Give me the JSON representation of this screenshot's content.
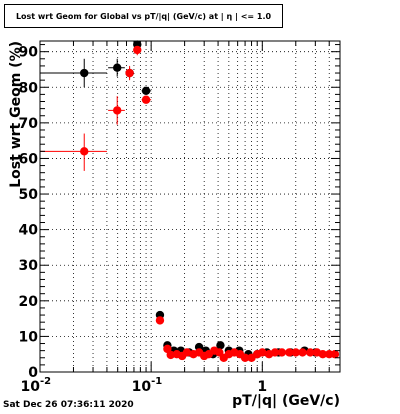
{
  "title": "Lost wrt Geom for Global vs pT/|q| (GeV/c) at | η | <= 1.0",
  "footer": "Sat Dec 26 07:36:11 2020",
  "chart_data": {
    "type": "scatter",
    "title": "Lost wrt Geom for Global vs pT/|q| (GeV/c) at | η | <= 1.0",
    "xlabel": "pT/|q| (GeV/c)",
    "ylabel": "Lost wrt Geom (%)",
    "xscale": "log",
    "xlim": [
      0.01,
      5
    ],
    "ylim": [
      0,
      93
    ],
    "grid": true,
    "x_ticks": [
      {
        "v": 0.01,
        "label": "10",
        "sup": "-2"
      },
      {
        "v": 0.1,
        "label": "10",
        "sup": "-1"
      },
      {
        "v": 1,
        "label": "1",
        "sup": ""
      }
    ],
    "y_ticks": [
      {
        "v": 0,
        "label": "0"
      },
      {
        "v": 10,
        "label": "10"
      },
      {
        "v": 20,
        "label": "20"
      },
      {
        "v": 30,
        "label": "30"
      },
      {
        "v": 40,
        "label": "40"
      },
      {
        "v": 50,
        "label": "50"
      },
      {
        "v": 60,
        "label": "60"
      },
      {
        "v": 70,
        "label": "70"
      },
      {
        "v": 80,
        "label": "80"
      },
      {
        "v": 90,
        "label": "90"
      }
    ],
    "series": [
      {
        "color": "#000000",
        "points": [
          {
            "x": 0.025,
            "y": 84,
            "xlo": 0.01,
            "xhi": 0.04,
            "ylo": 80,
            "yhi": 88
          },
          {
            "x": 0.0495,
            "y": 85.5,
            "xlo": 0.041,
            "xhi": 0.058,
            "ylo": 83,
            "yhi": 88
          },
          {
            "x": 0.064,
            "y": 84,
            "xlo": 0.059,
            "xhi": 0.069,
            "ylo": 82.5,
            "yhi": 85.5
          },
          {
            "x": 0.075,
            "y": 92,
            "xlo": 0.07,
            "xhi": 0.08,
            "ylo": 91,
            "yhi": 93
          },
          {
            "x": 0.09,
            "y": 79,
            "xlo": 0.082,
            "xhi": 0.1,
            "ylo": 78,
            "yhi": 80
          },
          {
            "x": 0.12,
            "y": 16,
            "xlo": 0.115,
            "xhi": 0.125,
            "ylo": 15,
            "yhi": 17
          },
          {
            "x": 0.14,
            "y": 7.5,
            "xlo": 0.135,
            "xhi": 0.145,
            "ylo": 6.5,
            "yhi": 8.5
          },
          {
            "x": 0.16,
            "y": 6,
            "xlo": 0.155,
            "xhi": 0.165,
            "ylo": 5.3,
            "yhi": 6.7
          },
          {
            "x": 0.185,
            "y": 6,
            "xlo": 0.18,
            "xhi": 0.19,
            "ylo": 5.3,
            "yhi": 6.7
          },
          {
            "x": 0.22,
            "y": 5.5,
            "xlo": 0.21,
            "xhi": 0.23,
            "ylo": 4.8,
            "yhi": 6.2
          },
          {
            "x": 0.27,
            "y": 7,
            "xlo": 0.26,
            "xhi": 0.28,
            "ylo": 6.3,
            "yhi": 7.7
          },
          {
            "x": 0.31,
            "y": 6,
            "xlo": 0.3,
            "xhi": 0.32,
            "ylo": 5.3,
            "yhi": 6.7
          },
          {
            "x": 0.36,
            "y": 5,
            "xlo": 0.35,
            "xhi": 0.37,
            "ylo": 4.3,
            "yhi": 5.7
          },
          {
            "x": 0.42,
            "y": 7.5,
            "xlo": 0.41,
            "xhi": 0.43,
            "ylo": 6.8,
            "yhi": 8.2
          },
          {
            "x": 0.5,
            "y": 6,
            "xlo": 0.49,
            "xhi": 0.51,
            "ylo": 5.4,
            "yhi": 6.6
          },
          {
            "x": 0.62,
            "y": 6,
            "xlo": 0.6,
            "xhi": 0.64,
            "ylo": 5.4,
            "yhi": 6.6
          },
          {
            "x": 0.75,
            "y": 5,
            "xlo": 0.72,
            "xhi": 0.78,
            "ylo": 4.4,
            "yhi": 5.6
          },
          {
            "x": 0.9,
            "y": 5,
            "xlo": 0.87,
            "xhi": 0.93,
            "ylo": 4.5,
            "yhi": 5.5
          },
          {
            "x": 1.1,
            "y": 5.5,
            "xlo": 1.05,
            "xhi": 1.15,
            "ylo": 5.0,
            "yhi": 6.0
          },
          {
            "x": 1.4,
            "y": 5.5,
            "xlo": 1.3,
            "xhi": 1.5,
            "ylo": 5.0,
            "yhi": 6.0
          },
          {
            "x": 1.8,
            "y": 5.5,
            "xlo": 1.7,
            "xhi": 1.9,
            "ylo": 5.0,
            "yhi": 6.0
          },
          {
            "x": 2.4,
            "y": 6,
            "xlo": 2.2,
            "xhi": 2.6,
            "ylo": 5.5,
            "yhi": 6.5
          },
          {
            "x": 3.0,
            "y": 5.5,
            "xlo": 2.8,
            "xhi": 3.2,
            "ylo": 5.0,
            "yhi": 6.0
          }
        ]
      },
      {
        "color": "#ff0000",
        "points": [
          {
            "x": 0.025,
            "y": 62,
            "xlo": 0.01,
            "xhi": 0.04,
            "ylo": 56.5,
            "yhi": 67
          },
          {
            "x": 0.0495,
            "y": 73.5,
            "xlo": 0.041,
            "xhi": 0.058,
            "ylo": 69.5,
            "yhi": 77.5
          },
          {
            "x": 0.064,
            "y": 84,
            "xlo": 0.059,
            "xhi": 0.069,
            "ylo": 82,
            "yhi": 86
          },
          {
            "x": 0.075,
            "y": 90.5,
            "xlo": 0.07,
            "xhi": 0.08,
            "ylo": 89,
            "yhi": 92
          },
          {
            "x": 0.09,
            "y": 76.5,
            "xlo": 0.082,
            "xhi": 0.1,
            "ylo": 75.5,
            "yhi": 77.5
          },
          {
            "x": 0.12,
            "y": 14.5,
            "xlo": 0.115,
            "xhi": 0.125,
            "ylo": 13.5,
            "yhi": 15.5
          },
          {
            "x": 0.14,
            "y": 6.5,
            "xlo": 0.135,
            "xhi": 0.145,
            "ylo": 5.8,
            "yhi": 7.2
          },
          {
            "x": 0.15,
            "y": 4.8,
            "xlo": 0.145,
            "xhi": 0.155,
            "ylo": 4.2,
            "yhi": 5.4
          },
          {
            "x": 0.17,
            "y": 5,
            "xlo": 0.165,
            "xhi": 0.175,
            "ylo": 4.4,
            "yhi": 5.6
          },
          {
            "x": 0.19,
            "y": 4.5,
            "xlo": 0.185,
            "xhi": 0.195,
            "ylo": 3.9,
            "yhi": 5.1
          },
          {
            "x": 0.21,
            "y": 5.5,
            "xlo": 0.2,
            "xhi": 0.22,
            "ylo": 4.9,
            "yhi": 6.1
          },
          {
            "x": 0.24,
            "y": 5,
            "xlo": 0.23,
            "xhi": 0.25,
            "ylo": 4.4,
            "yhi": 5.6
          },
          {
            "x": 0.27,
            "y": 5.5,
            "xlo": 0.26,
            "xhi": 0.28,
            "ylo": 4.9,
            "yhi": 6.1
          },
          {
            "x": 0.3,
            "y": 4.5,
            "xlo": 0.29,
            "xhi": 0.31,
            "ylo": 3.9,
            "yhi": 5.1
          },
          {
            "x": 0.33,
            "y": 5,
            "xlo": 0.32,
            "xhi": 0.34,
            "ylo": 4.4,
            "yhi": 5.6
          },
          {
            "x": 0.37,
            "y": 6,
            "xlo": 0.36,
            "xhi": 0.38,
            "ylo": 5.4,
            "yhi": 6.6
          },
          {
            "x": 0.41,
            "y": 5.5,
            "xlo": 0.4,
            "xhi": 0.42,
            "ylo": 4.9,
            "yhi": 6.1
          },
          {
            "x": 0.45,
            "y": 4,
            "xlo": 0.44,
            "xhi": 0.46,
            "ylo": 3.4,
            "yhi": 4.6
          },
          {
            "x": 0.5,
            "y": 5,
            "xlo": 0.49,
            "xhi": 0.51,
            "ylo": 4.4,
            "yhi": 5.6
          },
          {
            "x": 0.56,
            "y": 5.5,
            "xlo": 0.55,
            "xhi": 0.57,
            "ylo": 4.9,
            "yhi": 6.1
          },
          {
            "x": 0.63,
            "y": 5,
            "xlo": 0.61,
            "xhi": 0.65,
            "ylo": 4.4,
            "yhi": 5.6
          },
          {
            "x": 0.7,
            "y": 4,
            "xlo": 0.68,
            "xhi": 0.72,
            "ylo": 3.4,
            "yhi": 4.6
          },
          {
            "x": 0.8,
            "y": 4,
            "xlo": 0.77,
            "xhi": 0.83,
            "ylo": 3.4,
            "yhi": 4.6
          },
          {
            "x": 0.9,
            "y": 5,
            "xlo": 0.87,
            "xhi": 0.93,
            "ylo": 4.5,
            "yhi": 5.5
          },
          {
            "x": 1.0,
            "y": 5.5,
            "xlo": 0.97,
            "xhi": 1.03,
            "ylo": 5.0,
            "yhi": 6.0
          },
          {
            "x": 1.15,
            "y": 5,
            "xlo": 1.1,
            "xhi": 1.2,
            "ylo": 4.5,
            "yhi": 5.5
          },
          {
            "x": 1.3,
            "y": 5.5,
            "xlo": 1.25,
            "xhi": 1.35,
            "ylo": 5.0,
            "yhi": 6.0
          },
          {
            "x": 1.5,
            "y": 5.5,
            "xlo": 1.43,
            "xhi": 1.57,
            "ylo": 5.0,
            "yhi": 6.0
          },
          {
            "x": 1.75,
            "y": 5.5,
            "xlo": 1.65,
            "xhi": 1.85,
            "ylo": 5.0,
            "yhi": 6.0
          },
          {
            "x": 2.0,
            "y": 5.5,
            "xlo": 1.9,
            "xhi": 2.1,
            "ylo": 5.0,
            "yhi": 6.0
          },
          {
            "x": 2.3,
            "y": 5.5,
            "xlo": 2.2,
            "xhi": 2.4,
            "ylo": 5.0,
            "yhi": 6.0
          },
          {
            "x": 2.7,
            "y": 5.5,
            "xlo": 2.55,
            "xhi": 2.85,
            "ylo": 5.0,
            "yhi": 6.0
          },
          {
            "x": 3.1,
            "y": 5.5,
            "xlo": 2.95,
            "xhi": 3.25,
            "ylo": 5.0,
            "yhi": 6.0
          },
          {
            "x": 3.5,
            "y": 5,
            "xlo": 3.3,
            "xhi": 3.7,
            "ylo": 4.5,
            "yhi": 5.5
          },
          {
            "x": 4.0,
            "y": 5,
            "xlo": 3.8,
            "xhi": 4.2,
            "ylo": 4.5,
            "yhi": 5.5
          },
          {
            "x": 4.5,
            "y": 5,
            "xlo": 4.3,
            "xhi": 4.7,
            "ylo": 4.5,
            "yhi": 5.5
          }
        ]
      }
    ]
  }
}
